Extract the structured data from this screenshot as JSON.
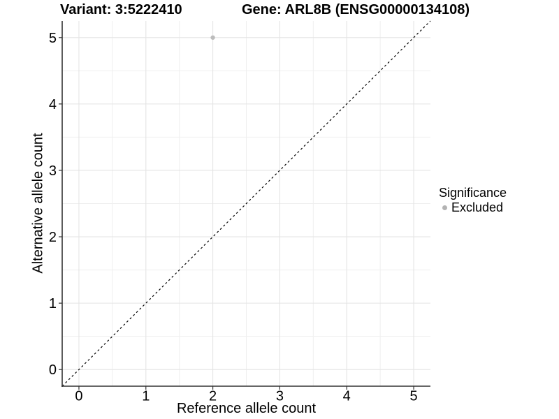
{
  "chart_data": {
    "type": "scatter",
    "title_left": "Variant: 3:5222410",
    "title_right": "Gene: ARL8B (ENSG00000134108)",
    "xlabel": "Reference allele count",
    "ylabel": "Alternative allele count",
    "xlim": [
      -0.25,
      5.25
    ],
    "ylim": [
      -0.25,
      5.25
    ],
    "x_ticks": [
      0,
      1,
      2,
      3,
      4,
      5
    ],
    "y_ticks": [
      0,
      1,
      2,
      3,
      4,
      5
    ],
    "x_minor_ticks": [
      0.5,
      1.5,
      2.5,
      3.5,
      4.5
    ],
    "y_minor_ticks": [
      0.5,
      1.5,
      2.5,
      3.5,
      4.5
    ],
    "grid": "major+minor",
    "identity_line": {
      "style": "dashed",
      "slope": 1,
      "intercept": 0,
      "color": "#000000"
    },
    "series": [
      {
        "name": "Excluded",
        "color": "#bcbcbc",
        "points": [
          {
            "x": 2,
            "y": 5
          }
        ]
      }
    ],
    "legend": {
      "position": "right",
      "title": "Significance",
      "entries": [
        {
          "label": "Excluded",
          "color": "#b3b3b3"
        }
      ]
    }
  },
  "colors": {
    "background": "#ffffff",
    "grid_major": "#e4e4e4",
    "grid_minor": "#efefef",
    "axis_line": "#333333",
    "tick_mark": "#333333",
    "text": "#000000"
  }
}
